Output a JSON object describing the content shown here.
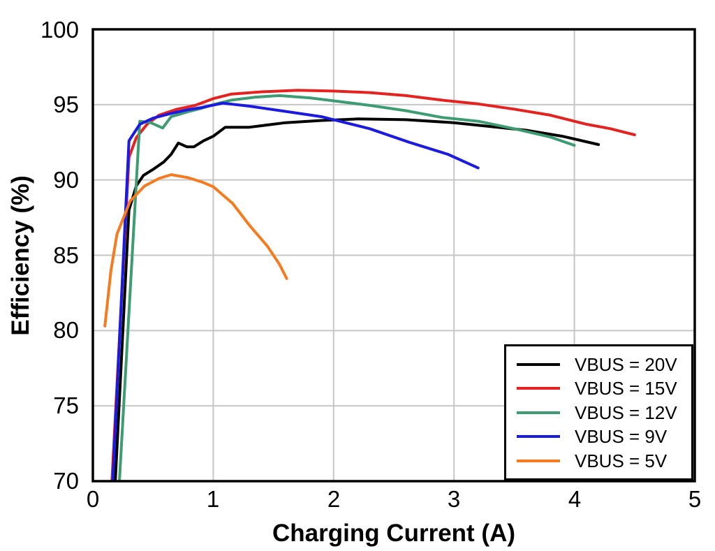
{
  "chart_data": {
    "type": "line",
    "title": "",
    "xlabel": "Charging Current (A)",
    "ylabel": "Efficiency (%)",
    "xlim": [
      0,
      5
    ],
    "ylim": [
      70,
      100
    ],
    "xticks": [
      "0",
      "1",
      "2",
      "3",
      "4",
      "5"
    ],
    "yticks": [
      "100",
      "95",
      "90",
      "85",
      "80",
      "75",
      "70"
    ],
    "grid": true,
    "grid_color": "#c6c6c6",
    "axis_color": "#000000",
    "legend_position": "lower-right",
    "series": [
      {
        "name": "VBUS = 20V",
        "color": "#000000",
        "points": [
          [
            0.155,
            65
          ],
          [
            0.3,
            88.0
          ],
          [
            0.36,
            89.6
          ],
          [
            0.42,
            90.3
          ],
          [
            0.5,
            90.7
          ],
          [
            0.59,
            91.2
          ],
          [
            0.65,
            91.7
          ],
          [
            0.71,
            92.45
          ],
          [
            0.78,
            92.2
          ],
          [
            0.84,
            92.2
          ],
          [
            0.92,
            92.6
          ],
          [
            1.0,
            92.9
          ],
          [
            1.1,
            93.5
          ],
          [
            1.3,
            93.5
          ],
          [
            1.6,
            93.8
          ],
          [
            1.9,
            93.95
          ],
          [
            2.2,
            94.05
          ],
          [
            2.6,
            94.0
          ],
          [
            3.0,
            93.8
          ],
          [
            3.3,
            93.55
          ],
          [
            3.6,
            93.3
          ],
          [
            3.9,
            92.9
          ],
          [
            4.2,
            92.35
          ]
        ]
      },
      {
        "name": "VBUS = 15V",
        "color": "#e42320",
        "points": [
          [
            0.125,
            65
          ],
          [
            0.3,
            91.5
          ],
          [
            0.36,
            92.8
          ],
          [
            0.45,
            93.7
          ],
          [
            0.55,
            94.3
          ],
          [
            0.7,
            94.7
          ],
          [
            0.85,
            94.95
          ],
          [
            1.0,
            95.4
          ],
          [
            1.15,
            95.7
          ],
          [
            1.4,
            95.85
          ],
          [
            1.7,
            95.95
          ],
          [
            2.0,
            95.9
          ],
          [
            2.3,
            95.8
          ],
          [
            2.6,
            95.6
          ],
          [
            2.9,
            95.3
          ],
          [
            3.2,
            95.05
          ],
          [
            3.5,
            94.7
          ],
          [
            3.8,
            94.3
          ],
          [
            4.1,
            93.7
          ],
          [
            4.3,
            93.4
          ],
          [
            4.5,
            93.0
          ]
        ]
      },
      {
        "name": "VBUS = 12V",
        "color": "#3d9c72",
        "points": [
          [
            0.185,
            65
          ],
          [
            0.39,
            93.9
          ],
          [
            0.48,
            93.8
          ],
          [
            0.58,
            93.45
          ],
          [
            0.65,
            94.2
          ],
          [
            0.8,
            94.55
          ],
          [
            0.9,
            94.75
          ],
          [
            1.0,
            95.0
          ],
          [
            1.15,
            95.3
          ],
          [
            1.35,
            95.5
          ],
          [
            1.55,
            95.6
          ],
          [
            1.8,
            95.45
          ],
          [
            2.0,
            95.25
          ],
          [
            2.3,
            94.95
          ],
          [
            2.6,
            94.6
          ],
          [
            2.9,
            94.15
          ],
          [
            3.2,
            93.9
          ],
          [
            3.5,
            93.4
          ],
          [
            3.8,
            92.85
          ],
          [
            4.0,
            92.3
          ]
        ]
      },
      {
        "name": "VBUS = 9V",
        "color": "#1a1ae0",
        "points": [
          [
            0.135,
            65
          ],
          [
            0.3,
            92.6
          ],
          [
            0.39,
            93.7
          ],
          [
            0.5,
            94.1
          ],
          [
            0.64,
            94.4
          ],
          [
            0.78,
            94.65
          ],
          [
            0.9,
            94.8
          ],
          [
            1.08,
            95.1
          ],
          [
            1.3,
            94.9
          ],
          [
            1.6,
            94.55
          ],
          [
            1.9,
            94.2
          ],
          [
            2.0,
            94.0
          ],
          [
            2.3,
            93.4
          ],
          [
            2.63,
            92.5
          ],
          [
            2.95,
            91.7
          ],
          [
            3.2,
            90.8
          ]
        ]
      },
      {
        "name": "VBUS = 5V",
        "color": "#f47b20",
        "points": [
          [
            0.1,
            80.3
          ],
          [
            0.15,
            84.0
          ],
          [
            0.2,
            86.4
          ],
          [
            0.31,
            88.6
          ],
          [
            0.43,
            89.6
          ],
          [
            0.55,
            90.1
          ],
          [
            0.65,
            90.35
          ],
          [
            0.79,
            90.15
          ],
          [
            0.91,
            89.85
          ],
          [
            1.0,
            89.55
          ],
          [
            1.16,
            88.45
          ],
          [
            1.3,
            87.0
          ],
          [
            1.45,
            85.6
          ],
          [
            1.55,
            84.4
          ],
          [
            1.61,
            83.45
          ]
        ]
      }
    ]
  }
}
